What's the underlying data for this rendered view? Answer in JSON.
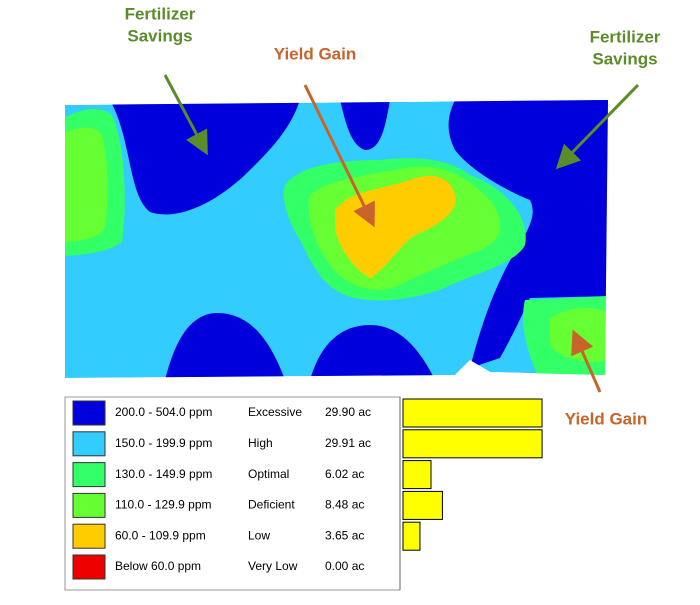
{
  "annotations": [
    {
      "lines": [
        "Fertilizer",
        "Savings"
      ],
      "color": "#5b8c2a"
    },
    {
      "lines": [
        "Yield Gain"
      ],
      "color": "#c8642a"
    },
    {
      "lines": [
        "Fertilizer",
        "Savings"
      ],
      "color": "#5b8c2a"
    },
    {
      "lines": [
        "Yield Gain"
      ],
      "color": "#c8642a"
    }
  ],
  "legend": {
    "bar_color": "#ffff00",
    "rows": [
      {
        "color": "#0000dd",
        "range": "200.0 - 504.0 ppm",
        "class": "Excessive",
        "acres": {
          "value": 29.9,
          "label": "29.90 ac"
        }
      },
      {
        "color": "#33ccff",
        "range": "150.0 - 199.9 ppm",
        "class": "High",
        "acres": {
          "value": 29.91,
          "label": "29.91 ac"
        }
      },
      {
        "color": "#33ff66",
        "range": "130.0 - 149.9 ppm",
        "class": "Optimal",
        "acres": {
          "value": 6.02,
          "label": "6.02 ac"
        }
      },
      {
        "color": "#66ff33",
        "range": "110.0 - 129.9 ppm",
        "class": "Deficient",
        "acres": {
          "value": 8.48,
          "label": "8.48 ac"
        }
      },
      {
        "color": "#ffcc00",
        "range": "60.0 - 109.9 ppm",
        "class": "Low",
        "acres": {
          "value": 3.65,
          "label": "3.65 ac"
        }
      },
      {
        "color": "#ee0000",
        "range": "Below 60.0 ppm",
        "class": "Very Low",
        "acres": {
          "value": 0,
          "label": "0.00 ac"
        }
      }
    ]
  }
}
